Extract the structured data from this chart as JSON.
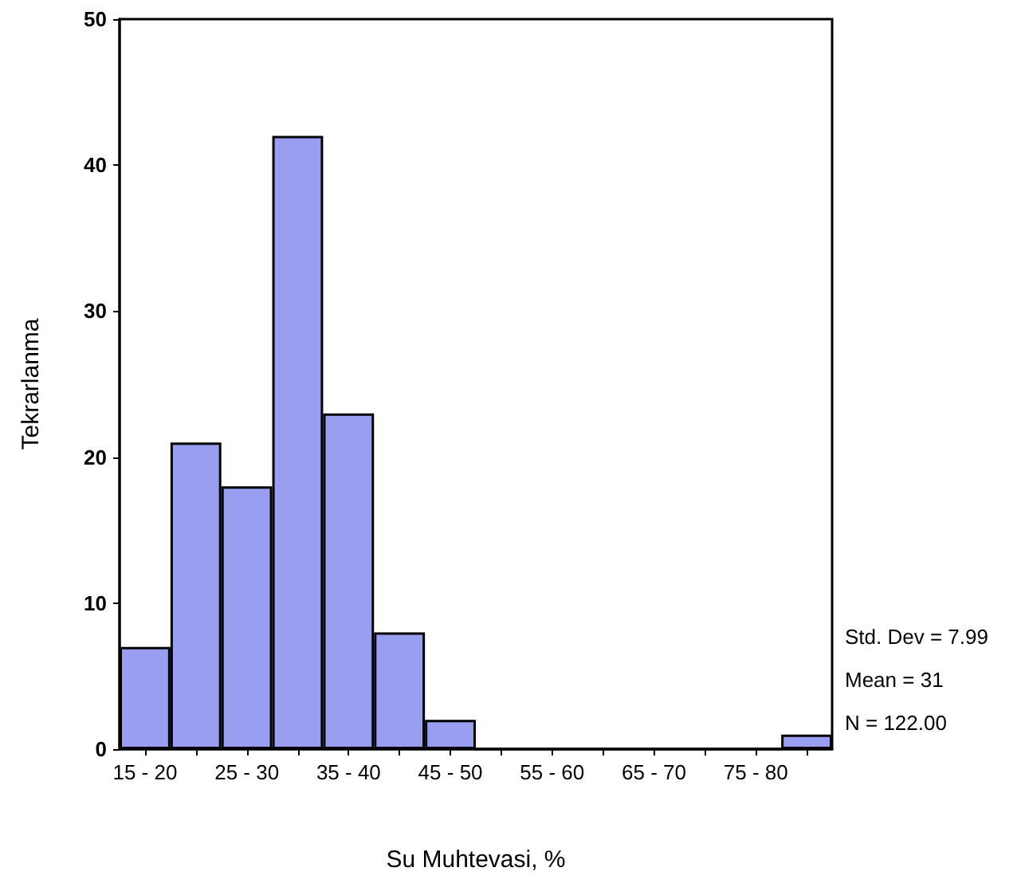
{
  "chart_data": {
    "type": "bar",
    "xlabel": "Su Muhtevasi, %",
    "ylabel": "Tekrarlanma",
    "categories": [
      "15 - 20",
      null,
      "25 - 30",
      null,
      "35 - 40",
      null,
      "45 - 50",
      null,
      "55 - 60",
      null,
      "65 - 70",
      null,
      "75 - 80",
      null
    ],
    "values": [
      7,
      21,
      18,
      42,
      23,
      8,
      2,
      0,
      0,
      0,
      0,
      0,
      0,
      1
    ],
    "color": "#9a9ef0",
    "ylim": [
      0,
      50
    ],
    "yticks": [
      0,
      10,
      20,
      30,
      40,
      50
    ],
    "grid": false,
    "annotations": [
      "Std. Dev = 7.99",
      "Mean = 31",
      "N = 122.00"
    ]
  }
}
